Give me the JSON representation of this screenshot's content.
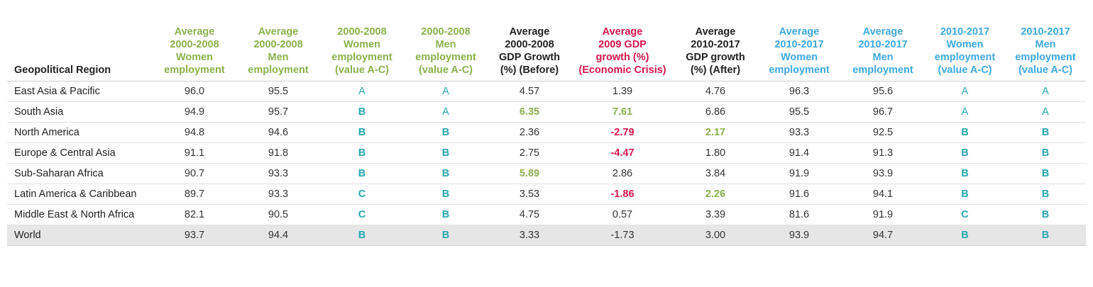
{
  "colors": {
    "green_header": "#8bb14d",
    "black_header": "#222222",
    "red_header": "#d4174b",
    "blue_header": "#3fa9e0",
    "letter_teal": "#2aa6b0"
  },
  "headers": [
    {
      "lines": [
        ""
      ],
      "text": "Geopolitical Region",
      "tone": "black"
    },
    {
      "text": "Average 2000-2008 Women employment",
      "tone": "green"
    },
    {
      "text": "Average 2000-2008 Men employment",
      "tone": "green"
    },
    {
      "text": "2000-2008 Women employment (value A-C)",
      "tone": "green"
    },
    {
      "text": "2000-2008 Men employment (value A-C)",
      "tone": "green"
    },
    {
      "text": "Average 2000-2008 GDP Growth (%) (Before)",
      "tone": "black"
    },
    {
      "text": "Average 2009 GDP growth (%) (Economic Crisis)",
      "tone": "red"
    },
    {
      "text": "Average 2010-2017 GDP growth (%) (After)",
      "tone": "black"
    },
    {
      "text": "Average 2010-2017 Women employment",
      "tone": "blue"
    },
    {
      "text": "Average 2010-2017 Men employment",
      "tone": "blue"
    },
    {
      "text": "2010-2017 Women employment (value A-C)",
      "tone": "blue"
    },
    {
      "text": "2010-2017 Men employment (value A-C)",
      "tone": "blue"
    }
  ],
  "header_lines": [
    [
      "Geopolitical Region"
    ],
    [
      "Average",
      "2000-2008",
      "Women",
      "employment"
    ],
    [
      "Average",
      "2000-2008",
      "Men",
      "employment"
    ],
    [
      "2000-2008",
      "Women",
      "employment",
      "(value A-C)"
    ],
    [
      "2000-2008",
      "Men",
      "employment",
      "(value A-C)"
    ],
    [
      "Average",
      "2000-2008",
      "GDP Growth",
      "(%) (Before)"
    ],
    [
      "Average",
      "2009 GDP",
      "growth (%)",
      "(Economic Crisis)"
    ],
    [
      "Average",
      "2010-2017",
      "GDP growth",
      "(%) (After)"
    ],
    [
      "Average",
      "2010-2017",
      "Women",
      "employment"
    ],
    [
      "Average",
      "2010-2017",
      "Men",
      "employment"
    ],
    [
      "2010-2017",
      "Women",
      "employment",
      "(value A-C)"
    ],
    [
      "2010-2017",
      "Men",
      "employment",
      "(value A-C)"
    ]
  ],
  "rows": [
    {
      "region": "East Asia & Pacific",
      "w0008": "96.0",
      "m0008": "95.5",
      "wgrade1": "A",
      "mgrade1": "A",
      "gdp_before": "4.57",
      "gdp_before_hl": "",
      "gdp_2009": "1.39",
      "gdp_2009_hl": "",
      "gdp_after": "4.76",
      "gdp_after_hl": "",
      "w1017": "96.3",
      "m1017": "95.6",
      "wgrade2": "A",
      "mgrade2": "A"
    },
    {
      "region": "South Asia",
      "w0008": "94.9",
      "m0008": "95.7",
      "wgrade1": "B",
      "mgrade1": "A",
      "gdp_before": "6.35",
      "gdp_before_hl": "green",
      "gdp_2009": "7.61",
      "gdp_2009_hl": "green",
      "gdp_after": "6.86",
      "gdp_after_hl": "",
      "w1017": "95.5",
      "m1017": "96.7",
      "wgrade2": "A",
      "mgrade2": "A"
    },
    {
      "region": "North America",
      "w0008": "94.8",
      "m0008": "94.6",
      "wgrade1": "B",
      "mgrade1": "B",
      "gdp_before": "2.36",
      "gdp_before_hl": "",
      "gdp_2009": "-2.79",
      "gdp_2009_hl": "red",
      "gdp_after": "2.17",
      "gdp_after_hl": "green",
      "w1017": "93.3",
      "m1017": "92.5",
      "wgrade2": "B",
      "mgrade2": "B"
    },
    {
      "region": "Europe & Central Asia",
      "w0008": "91.1",
      "m0008": "91.8",
      "wgrade1": "B",
      "mgrade1": "B",
      "gdp_before": "2.75",
      "gdp_before_hl": "",
      "gdp_2009": "-4.47",
      "gdp_2009_hl": "red",
      "gdp_after": "1.80",
      "gdp_after_hl": "",
      "w1017": "91.4",
      "m1017": "91.3",
      "wgrade2": "B",
      "mgrade2": "B"
    },
    {
      "region": "Sub-Saharan Africa",
      "w0008": "90.7",
      "m0008": "93.3",
      "wgrade1": "B",
      "mgrade1": "B",
      "gdp_before": "5.89",
      "gdp_before_hl": "green",
      "gdp_2009": "2.86",
      "gdp_2009_hl": "",
      "gdp_after": "3.84",
      "gdp_after_hl": "",
      "w1017": "91.9",
      "m1017": "93.9",
      "wgrade2": "B",
      "mgrade2": "B"
    },
    {
      "region": "Latin America & Caribbean",
      "w0008": "89.7",
      "m0008": "93.3",
      "wgrade1": "C",
      "mgrade1": "B",
      "gdp_before": "3.53",
      "gdp_before_hl": "",
      "gdp_2009": "-1.86",
      "gdp_2009_hl": "red",
      "gdp_after": "2.26",
      "gdp_after_hl": "green",
      "w1017": "91.6",
      "m1017": "94.1",
      "wgrade2": "B",
      "mgrade2": "B"
    },
    {
      "region": "Middle East & North Africa",
      "w0008": "82.1",
      "m0008": "90.5",
      "wgrade1": "C",
      "mgrade1": "B",
      "gdp_before": "4.75",
      "gdp_before_hl": "",
      "gdp_2009": "0.57",
      "gdp_2009_hl": "",
      "gdp_after": "3.39",
      "gdp_after_hl": "",
      "w1017": "81.6",
      "m1017": "91.9",
      "wgrade2": "C",
      "mgrade2": "B"
    },
    {
      "region": "World",
      "w0008": "93.7",
      "m0008": "94.4",
      "wgrade1": "B",
      "mgrade1": "B",
      "gdp_before": "3.33",
      "gdp_before_hl": "",
      "gdp_2009": "-1.73",
      "gdp_2009_hl": "",
      "gdp_after": "3.00",
      "gdp_after_hl": "",
      "w1017": "93.9",
      "m1017": "94.7",
      "wgrade2": "B",
      "mgrade2": "B",
      "world": true
    }
  ]
}
